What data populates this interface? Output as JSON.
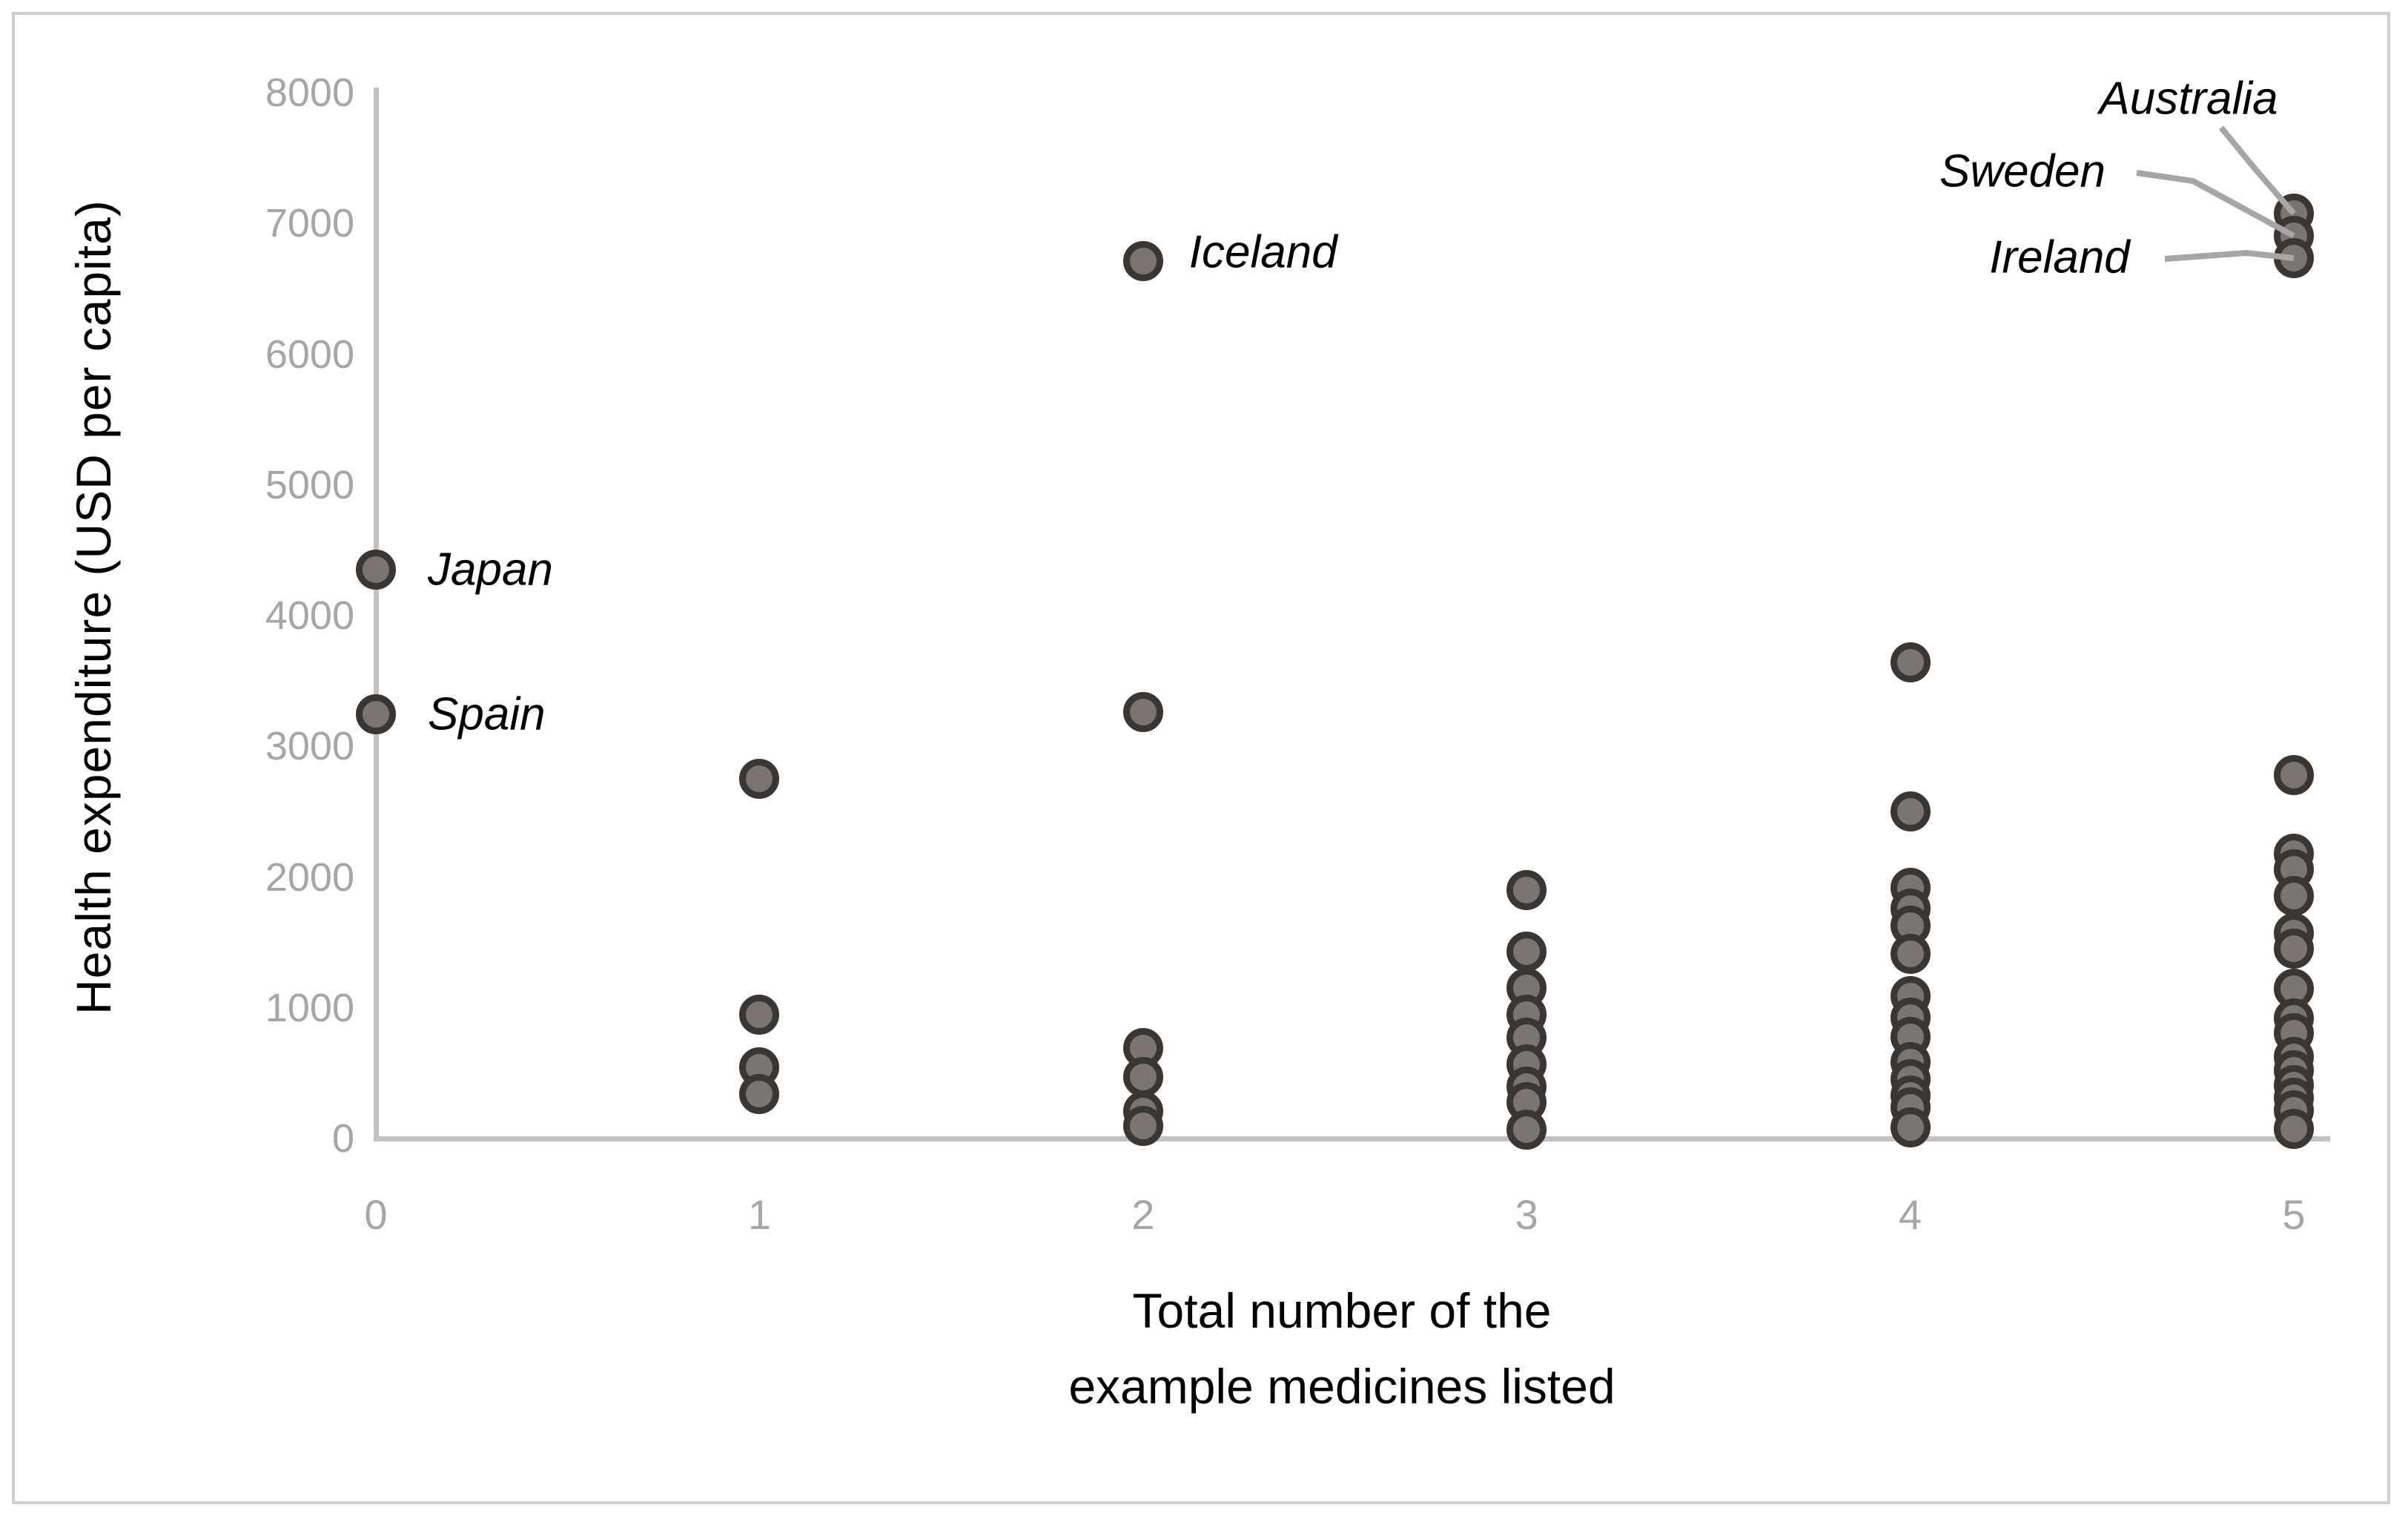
{
  "colors": {
    "background": "#ffffff",
    "frame_border": "#cfcecd",
    "axis_line": "#c3c2c1",
    "tick_label": "#a6a6a6",
    "leader_line": "#a6a6a6",
    "marker_fill": "#7a7472",
    "marker_ring": "#3a3633",
    "annotation_text": "#000000",
    "axis_title_text": "#000000"
  },
  "chart_data": {
    "type": "scatter",
    "title": "",
    "xlabel_lines": [
      "Total number of the",
      "example medicines listed"
    ],
    "ylabel": "Health expenditure (USD per capita)",
    "x_ticks": [
      "0",
      "1",
      "2",
      "3",
      "4",
      "5"
    ],
    "y_ticks": [
      "0",
      "1000",
      "2000",
      "3000",
      "4000",
      "5000",
      "6000",
      "7000",
      "8000"
    ],
    "xlim": [
      0,
      5
    ],
    "ylim": [
      0,
      8000
    ],
    "grid": false,
    "legend_position": "none",
    "annotated_countries": [
      "Japan",
      "Spain",
      "Iceland",
      "Australia",
      "Sweden",
      "Ireland"
    ],
    "points": [
      {
        "x": 0,
        "y": 4350,
        "label": "Japan"
      },
      {
        "x": 0,
        "y": 3245,
        "label": "Spain"
      },
      {
        "x": 1,
        "y": 2750
      },
      {
        "x": 1,
        "y": 950
      },
      {
        "x": 1,
        "y": 545
      },
      {
        "x": 1,
        "y": 340
      },
      {
        "x": 2,
        "y": 6710,
        "label": "Iceland"
      },
      {
        "x": 2,
        "y": 3260
      },
      {
        "x": 2,
        "y": 690
      },
      {
        "x": 2,
        "y": 470
      },
      {
        "x": 2,
        "y": 210
      },
      {
        "x": 2,
        "y": 95
      },
      {
        "x": 3,
        "y": 1900
      },
      {
        "x": 3,
        "y": 1430
      },
      {
        "x": 3,
        "y": 1150
      },
      {
        "x": 3,
        "y": 950
      },
      {
        "x": 3,
        "y": 770
      },
      {
        "x": 3,
        "y": 570
      },
      {
        "x": 3,
        "y": 400
      },
      {
        "x": 3,
        "y": 280
      },
      {
        "x": 3,
        "y": 70
      },
      {
        "x": 4,
        "y": 3640
      },
      {
        "x": 4,
        "y": 2500
      },
      {
        "x": 4,
        "y": 1920
      },
      {
        "x": 4,
        "y": 1760
      },
      {
        "x": 4,
        "y": 1630
      },
      {
        "x": 4,
        "y": 1410
      },
      {
        "x": 4,
        "y": 1090
      },
      {
        "x": 4,
        "y": 925
      },
      {
        "x": 4,
        "y": 780
      },
      {
        "x": 4,
        "y": 585
      },
      {
        "x": 4,
        "y": 455
      },
      {
        "x": 4,
        "y": 330
      },
      {
        "x": 4,
        "y": 240
      },
      {
        "x": 4,
        "y": 85
      },
      {
        "x": 5,
        "y": 7075,
        "label": "Australia"
      },
      {
        "x": 5,
        "y": 6905,
        "label": "Sweden"
      },
      {
        "x": 5,
        "y": 6735,
        "label": "Ireland"
      },
      {
        "x": 5,
        "y": 2780
      },
      {
        "x": 5,
        "y": 2180
      },
      {
        "x": 5,
        "y": 2060
      },
      {
        "x": 5,
        "y": 1855
      },
      {
        "x": 5,
        "y": 1570
      },
      {
        "x": 5,
        "y": 1450
      },
      {
        "x": 5,
        "y": 1145
      },
      {
        "x": 5,
        "y": 920
      },
      {
        "x": 5,
        "y": 805
      },
      {
        "x": 5,
        "y": 625
      },
      {
        "x": 5,
        "y": 520
      },
      {
        "x": 5,
        "y": 410
      },
      {
        "x": 5,
        "y": 310
      },
      {
        "x": 5,
        "y": 215
      },
      {
        "x": 5,
        "y": 75
      }
    ]
  }
}
